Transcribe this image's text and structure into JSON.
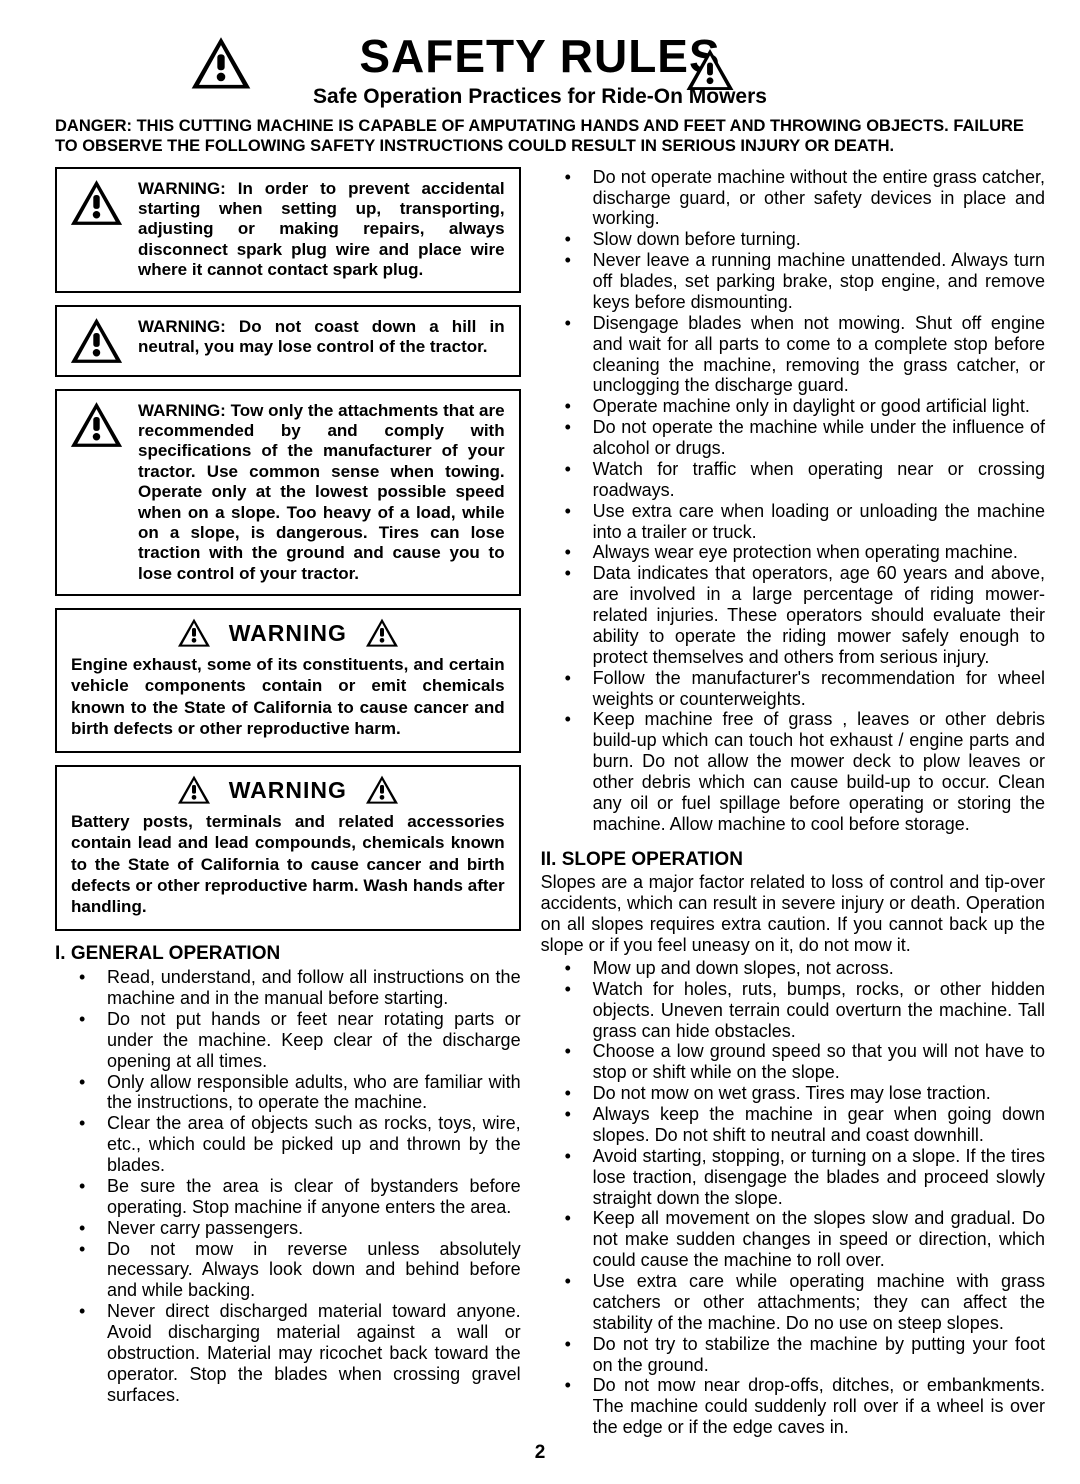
{
  "header": {
    "title": "SAFETY RULES",
    "subtitle": "Safe Operation Practices for Ride-On Mowers"
  },
  "danger": "DANGER:  THIS CUTTING MACHINE IS CAPABLE OF AMPUTATING HANDS AND FEET AND THROWING OBJECTS.  FAILURE TO OBSERVE THE FOLLOWING SAFETY INSTRUCTIONS COULD RESULT IN SERIOUS INJURY OR DEATH.",
  "warn_boxes": [
    "WARNING:  In order to prevent accidental starting when setting up, transporting, adjusting or making repairs, always disconnect spark plug wire and place wire where it cannot contact spark plug.",
    "WARNING:  Do not coast down a hill in neutral, you may lose control of the tractor.",
    "WARNING:  Tow only the attachments that are recommended by and comply with specifications of the manufacturer of your tractor. Use common sense when towing. Operate only at the lowest possible speed when on a slope.  Too heavy of a load, while on a slope, is dangerous.  Tires can lose traction with the ground and cause you to lose control of your tractor."
  ],
  "warn_sections": [
    {
      "title": "WARNING",
      "body": "Engine exhaust, some of its constituents, and certain vehicle components contain or emit chemicals known to the State of California to cause cancer and birth defects or other reproductive harm."
    },
    {
      "title": "WARNING",
      "body": "Battery posts, terminals and related accessories contain lead and lead compounds, chemicals known to the State of California to cause cancer and birth defects or other reproductive harm. Wash hands after handling."
    }
  ],
  "section1": {
    "title": "I. GENERAL OPERATION",
    "items_left": [
      "Read, understand, and follow all instructions on the machine and in the manual before starting.",
      "Do not put hands or feet near rotating parts or under the machine. Keep clear of the discharge opening at all times.",
      "Only allow responsible adults, who are familiar with the instructions, to operate the machine.",
      "Clear the area of objects such as  rocks, toys, wire, etc., which could be picked up and thrown by the blades.",
      "Be sure the area is clear of bystanders before operating.  Stop machine if anyone enters the area.",
      "Never carry passengers.",
      "Do not mow in reverse unless absolutely necessary. Always look down and behind before and while backing.",
      "Never direct discharged material toward anyone. Avoid discharging material against a wall or obstruction. Material may ricochet back toward the operator. Stop the blades when crossing gravel surfaces."
    ],
    "items_right": [
      "Do not operate machine without the entire grass catcher, discharge guard, or other safety devices in place and working.",
      "Slow down before turning.",
      "Never leave a running machine unattended.  Always turn off blades, set parking brake, stop engine, and remove keys before dismounting.",
      "Disengage blades when not mowing. Shut off engine and wait for all parts to come to a complete stop before cleaning the machine, removing the grass catcher, or unclogging the discharge guard.",
      "Operate machine only in daylight or good artificial light.",
      "Do not operate the machine while under the influence of alcohol or drugs.",
      "Watch for traffic when operating near or crossing roadways.",
      "Use extra care when loading or unloading the machine into a trailer or truck.",
      "Always wear eye protection when operating machine.",
      "Data indicates that operators, age 60 years and above, are involved in a large percentage of riding mower-related injuries.  These operators should evaluate their ability to operate the riding mower safely enough to protect themselves and others from serious injury.",
      "Follow the manufacturer's recommendation for wheel weights or counterweights.",
      "Keep machine free of grass , leaves or other debris build-up which can touch hot exhaust / engine parts and burn. Do not allow the mower deck to plow leaves or other debris which can cause build-up to occur. Clean any oil or fuel spillage before operating or storing the machine. Allow machine to cool before storage."
    ]
  },
  "section2": {
    "title": "II. SLOPE OPERATION",
    "intro": "Slopes are a major factor related to loss of control and tip-over accidents, which can result in severe injury or death.  Operation on all slopes requires extra caution.  If you cannot back up the slope or if you feel uneasy on it, do not mow it.",
    "items": [
      "Mow up and down slopes, not across.",
      "Watch for holes, ruts, bumps, rocks, or other hidden objects.  Uneven terrain could overturn the machine. Tall grass can hide obstacles.",
      "Choose a low ground speed so that you will not have to stop or shift while on the slope.",
      "Do not mow on wet grass. Tires may lose traction.",
      "Always keep the machine in gear when going down slopes. Do not shift to neutral and coast downhill.",
      "Avoid starting, stopping, or turning on a slope.  If the tires lose traction,  disengage the blades and proceed slowly straight down the slope.",
      "Keep all movement on the slopes slow and gradual.  Do not make sudden changes in speed or direction, which could cause the machine to roll over.",
      "Use extra care while operating machine with grass catchers or other attachments; they can affect the stability of the machine. Do no use on steep slopes.",
      "Do not  try to stabilize the machine by putting your foot on the ground.",
      "Do not mow near drop-offs, ditches, or embankments. The machine could suddenly roll over if a wheel is over the edge or if the edge caves in."
    ]
  },
  "page_number": "2",
  "colors": {
    "text": "#000000",
    "bg": "#ffffff",
    "border": "#000000"
  }
}
